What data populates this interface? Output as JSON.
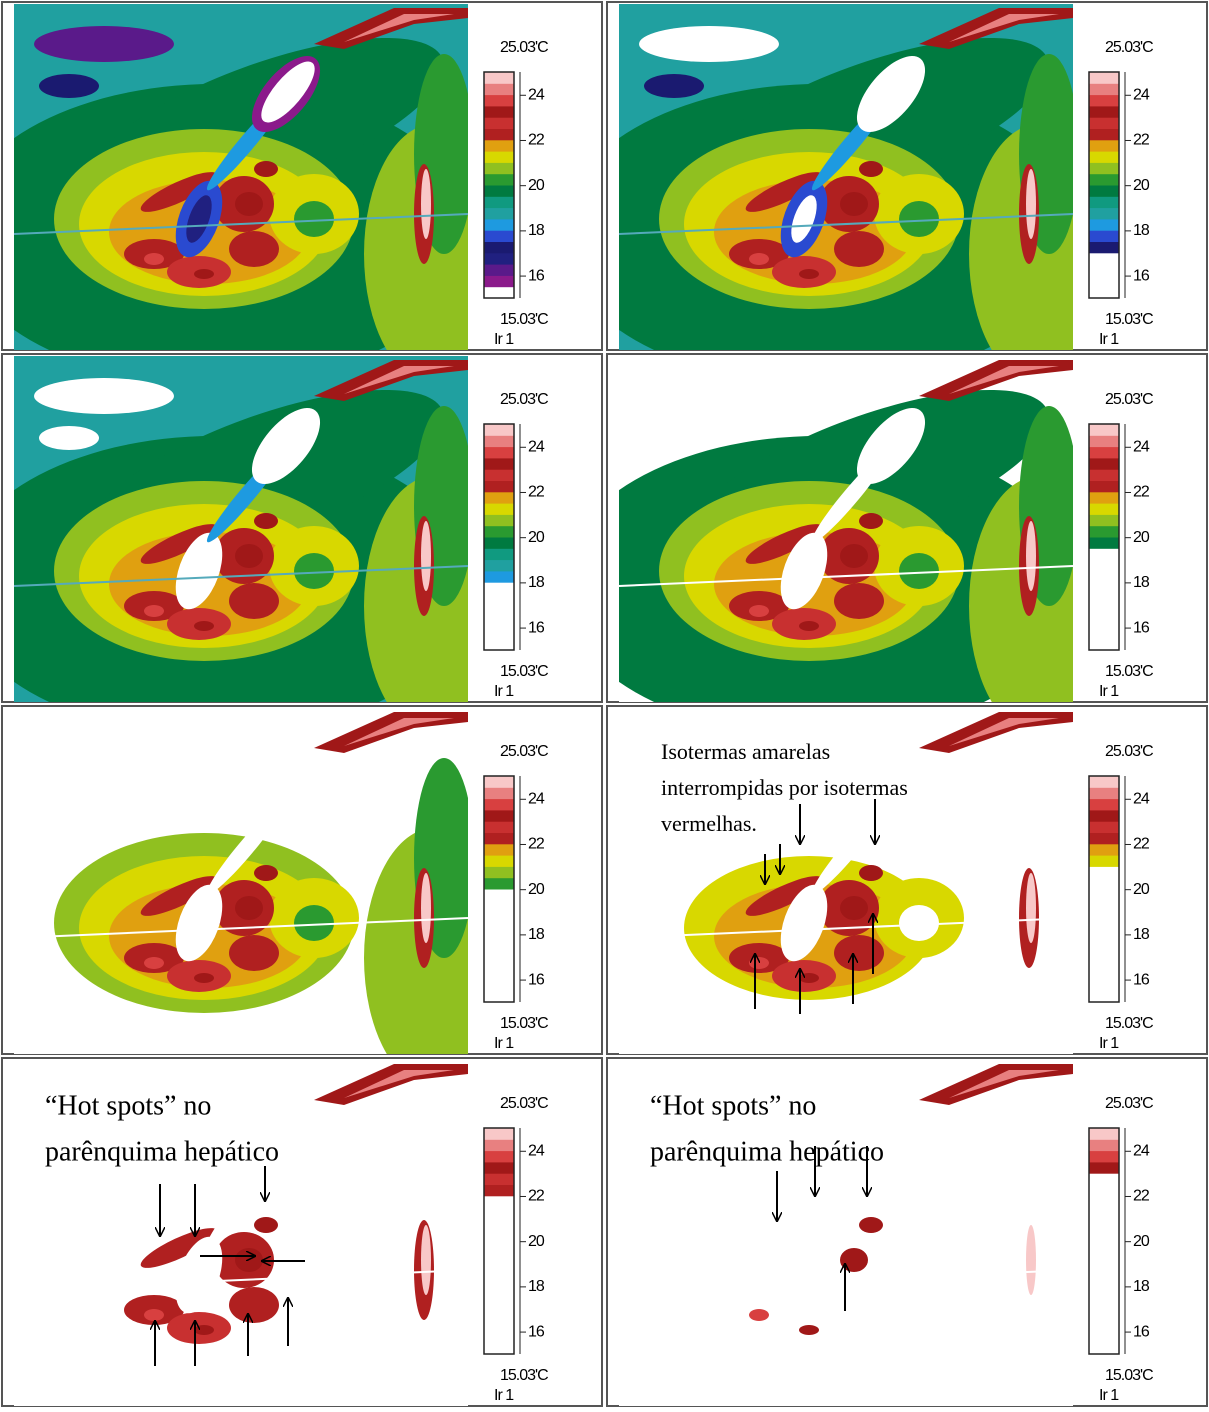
{
  "scale": {
    "lim": [
      15.03,
      25.03
    ],
    "ticks": [
      24,
      22,
      20,
      18,
      16
    ],
    "colors": [
      "#a0208f",
      "#8b1a8b",
      "#5a1a8a",
      "#202080",
      "#1a1a70",
      "#2a4ad0",
      "#1e9ae0",
      "#20a0a0",
      "#109a80",
      "#007a40",
      "#2a9a30",
      "#90c020",
      "#d8d800",
      "#e0a010",
      "#b02020",
      "#c83030",
      "#a01818",
      "#d84040",
      "#e88080",
      "#f8c8c8"
    ]
  },
  "panels": [
    {
      "max_label": "25.03'C",
      "min_label": "15.03'C",
      "channel": "Ir 1",
      "white_below": 15.6
    },
    {
      "max_label": "25.03'C",
      "min_label": "15.03'C",
      "channel": "Ir 1",
      "white_below": 16.9
    },
    {
      "max_label": "25.03'C",
      "min_label": "15.03'C",
      "channel": "Ir 1",
      "white_below": 18
    },
    {
      "max_label": "25.03'C",
      "min_label": "15.03'C",
      "channel": "Ir 1",
      "white_below": 19.3
    },
    {
      "max_label": "25.03'C",
      "min_label": "15.03'C",
      "channel": "Ir 1",
      "white_below": 20
    },
    {
      "max_label": "25.03'C",
      "min_label": "15.03'C",
      "channel": "Ir 1",
      "white_below": 21,
      "annotation": [
        "Isotermas amarelas",
        "interrompidas por isotermas",
        "vermelhas."
      ]
    },
    {
      "max_label": "25.03'C",
      "min_label": "15.03'C",
      "channel": "Ir 1",
      "white_below": 22,
      "annotation": [
        "“Hot spots” no",
        "parênquima hepático"
      ]
    },
    {
      "max_label": "25.03'C",
      "min_label": "15.03'C",
      "channel": "Ir 1",
      "white_below": 23,
      "annotation": [
        "“Hot spots” no",
        "parênquima hepático"
      ]
    }
  ]
}
